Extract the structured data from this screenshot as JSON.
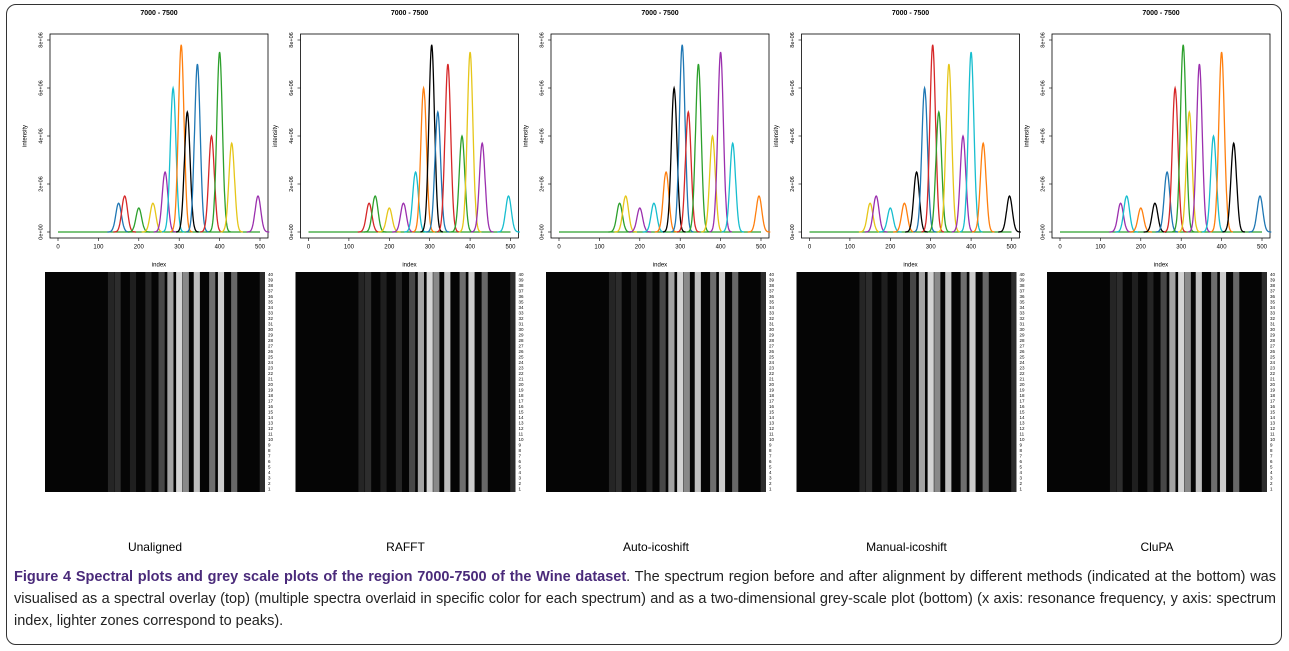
{
  "figure": {
    "panel_title": "7000 - 7500",
    "ylabel": "intensity",
    "xlabel": "index",
    "xlim": [
      0,
      500
    ],
    "ylim": [
      0,
      8000000
    ],
    "xticks": [
      0,
      100,
      200,
      300,
      400,
      500
    ],
    "yticks": [
      {
        "value": 0,
        "label": "0e+00"
      },
      {
        "value": 2000000,
        "label": "2e+06"
      },
      {
        "value": 4000000,
        "label": "4e+06"
      },
      {
        "value": 6000000,
        "label": "6e+06"
      },
      {
        "value": 8000000,
        "label": "8e+06"
      }
    ],
    "row_labels": [
      40,
      39,
      38,
      37,
      36,
      35,
      34,
      33,
      32,
      31,
      30,
      29,
      28,
      27,
      26,
      25,
      24,
      23,
      22,
      21,
      20,
      19,
      18,
      17,
      16,
      15,
      14,
      13,
      12,
      11,
      10,
      9,
      8,
      7,
      6,
      5,
      4,
      3,
      2,
      1
    ],
    "colors": [
      "#1f77b4",
      "#d62728",
      "#2ca02c",
      "#e6c619",
      "#9b2fae",
      "#17becf",
      "#ff7f0e",
      "#000000"
    ],
    "peaks": [
      {
        "x": 150,
        "height": 1200000
      },
      {
        "x": 165,
        "height": 1500000
      },
      {
        "x": 200,
        "height": 1000000
      },
      {
        "x": 235,
        "height": 1200000
      },
      {
        "x": 265,
        "height": 2500000
      },
      {
        "x": 285,
        "height": 6000000
      },
      {
        "x": 305,
        "height": 7800000
      },
      {
        "x": 320,
        "height": 5000000
      },
      {
        "x": 345,
        "height": 7000000
      },
      {
        "x": 380,
        "height": 4000000
      },
      {
        "x": 400,
        "height": 7500000
      },
      {
        "x": 430,
        "height": 3700000
      },
      {
        "x": 495,
        "height": 1500000
      }
    ],
    "methods": [
      "Unaligned",
      "RAFFT",
      "Auto-icoshift",
      "Manual-icoshift",
      "CluPA"
    ]
  },
  "caption": {
    "label": "Figure 4 Spectral plots and grey scale plots of the region 7000-7500 of the Wine dataset",
    "text": ". The spectrum region before and after alignment by different methods (indicated at the bottom) was visualised as a spectral overlay (top) (multiple spectra overlaid in specific color for each spectrum) and as a two-dimensional grey-scale plot (bottom) (x axis: resonance frequency, y axis: spectrum index, lighter zones correspond to peaks)."
  }
}
